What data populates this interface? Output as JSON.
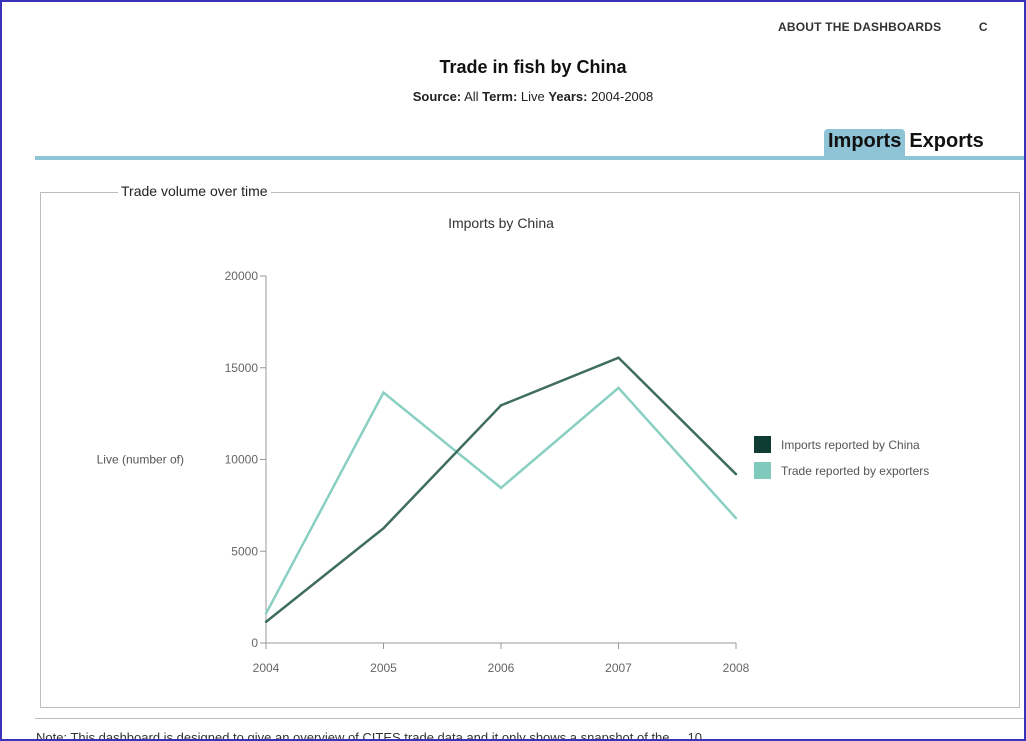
{
  "nav": {
    "items": [
      "ABOUT THE DASHBOARDS",
      "C"
    ]
  },
  "header": {
    "title": "Trade in fish by China",
    "source_label": "Source:",
    "source_value": "All",
    "term_label": "Term:",
    "term_value": "Live",
    "years_label": "Years:",
    "years_value": "2004-2008"
  },
  "tabs": [
    {
      "label": "Imports",
      "active": true
    },
    {
      "label": "Exports",
      "active": false
    }
  ],
  "panel": {
    "label": "Trade volume over time"
  },
  "note": "Note: This dashboard is designed to give an overview of CITES trade data and it only shows a snapshot of the ... 10",
  "colors": {
    "series_dark": "#3f6e5e",
    "series_light": "#89d0c3",
    "tab": "#8fc3d6",
    "frame": "#3a33b8"
  },
  "chart_data": {
    "type": "line",
    "title": "Imports by China",
    "xlabel": "",
    "ylabel": "Live (number of)",
    "x": [
      2004,
      2005,
      2006,
      2007,
      2008
    ],
    "xlim": [
      2004,
      2008
    ],
    "ylim": [
      0,
      20000
    ],
    "yticks": [
      0,
      5000,
      10000,
      15000,
      20000
    ],
    "grid": false,
    "legend_position": "right",
    "series": [
      {
        "name": "Imports reported by China",
        "color": "#3f6e5e",
        "legend_color": "#0f3d33",
        "values": [
          1150,
          6250,
          12950,
          15550,
          9200
        ]
      },
      {
        "name": "Trade reported by exporters",
        "color": "#89d0c3",
        "legend_color": "#7fcabd",
        "values": [
          1600,
          13650,
          8450,
          13900,
          6800
        ]
      }
    ]
  }
}
